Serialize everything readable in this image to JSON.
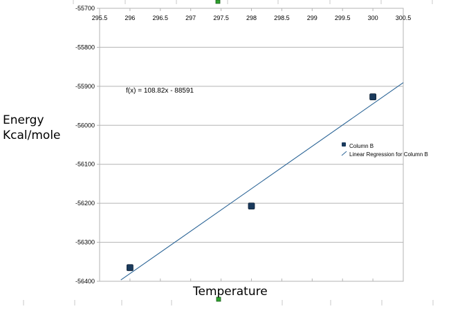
{
  "chart_data": {
    "type": "scatter",
    "title": "",
    "xlabel": "Temperature",
    "ylabel_lines": [
      "Energy",
      "Kcal/mole"
    ],
    "xlim": [
      295.5,
      300.5
    ],
    "ylim": [
      -56400,
      -55700
    ],
    "x_ticks": [
      "295.5",
      "296",
      "296.5",
      "297",
      "297.5",
      "298",
      "298.5",
      "299",
      "299.5",
      "300",
      "300.5"
    ],
    "y_ticks": [
      "-55700",
      "-55800",
      "-55900",
      "-56000",
      "-56100",
      "-56200",
      "-56300",
      "-56400"
    ],
    "grid": "horizontal",
    "series": [
      {
        "name": "Column B",
        "x": [
          296,
          298,
          300
        ],
        "y": [
          -56365,
          -56207,
          -55927
        ],
        "color": "#1a3a5c"
      }
    ],
    "regression": {
      "name": "Linear Regression for Column B",
      "equation": "f(x) = 108.82x - 88591",
      "slope": 108.82,
      "intercept": -88591,
      "x_range": [
        295.85,
        300.5
      ],
      "color": "#2a6496"
    },
    "legend": {
      "position": "right"
    },
    "extra_markers_color": "#2ea32e"
  }
}
